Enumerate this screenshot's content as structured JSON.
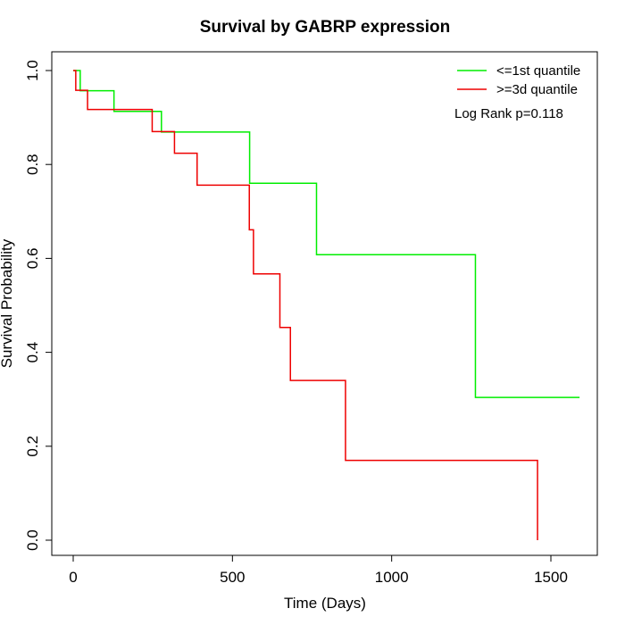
{
  "chart_data": {
    "type": "line",
    "step": true,
    "title": "Survival by GABRP expression",
    "xlabel": "Time (Days)",
    "ylabel": "Survival Probability",
    "xlim": [
      0,
      1600
    ],
    "ylim": [
      0,
      1.0
    ],
    "x_ticks": [
      0,
      500,
      1000,
      1500
    ],
    "x_tick_labels": [
      "0",
      "500",
      "1000",
      "1500"
    ],
    "y_ticks": [
      0.0,
      0.2,
      0.4,
      0.6,
      0.8,
      1.0
    ],
    "y_tick_labels": [
      "0.0",
      "0.2",
      "0.4",
      "0.6",
      "0.8",
      "1.0"
    ],
    "grid": false,
    "legend_position": "top-right",
    "annotation": "Log Rank p=0.118",
    "series": [
      {
        "name": "<=1st quantile",
        "color": "#00ee00",
        "x": [
          0,
          22,
          128,
          277,
          554,
          764,
          1263,
          1590
        ],
        "y": [
          1.0,
          0.957,
          0.913,
          0.869,
          0.76,
          0.608,
          0.304,
          0.304
        ]
      },
      {
        "name": ">=3d quantile",
        "color": "#ee0000",
        "x": [
          0,
          8,
          45,
          248,
          318,
          389,
          553,
          566,
          649,
          682,
          855,
          1458,
          1458
        ],
        "y": [
          1.0,
          0.958,
          0.917,
          0.87,
          0.824,
          0.756,
          0.661,
          0.567,
          0.453,
          0.34,
          0.17,
          0.17,
          0.0
        ]
      }
    ]
  }
}
